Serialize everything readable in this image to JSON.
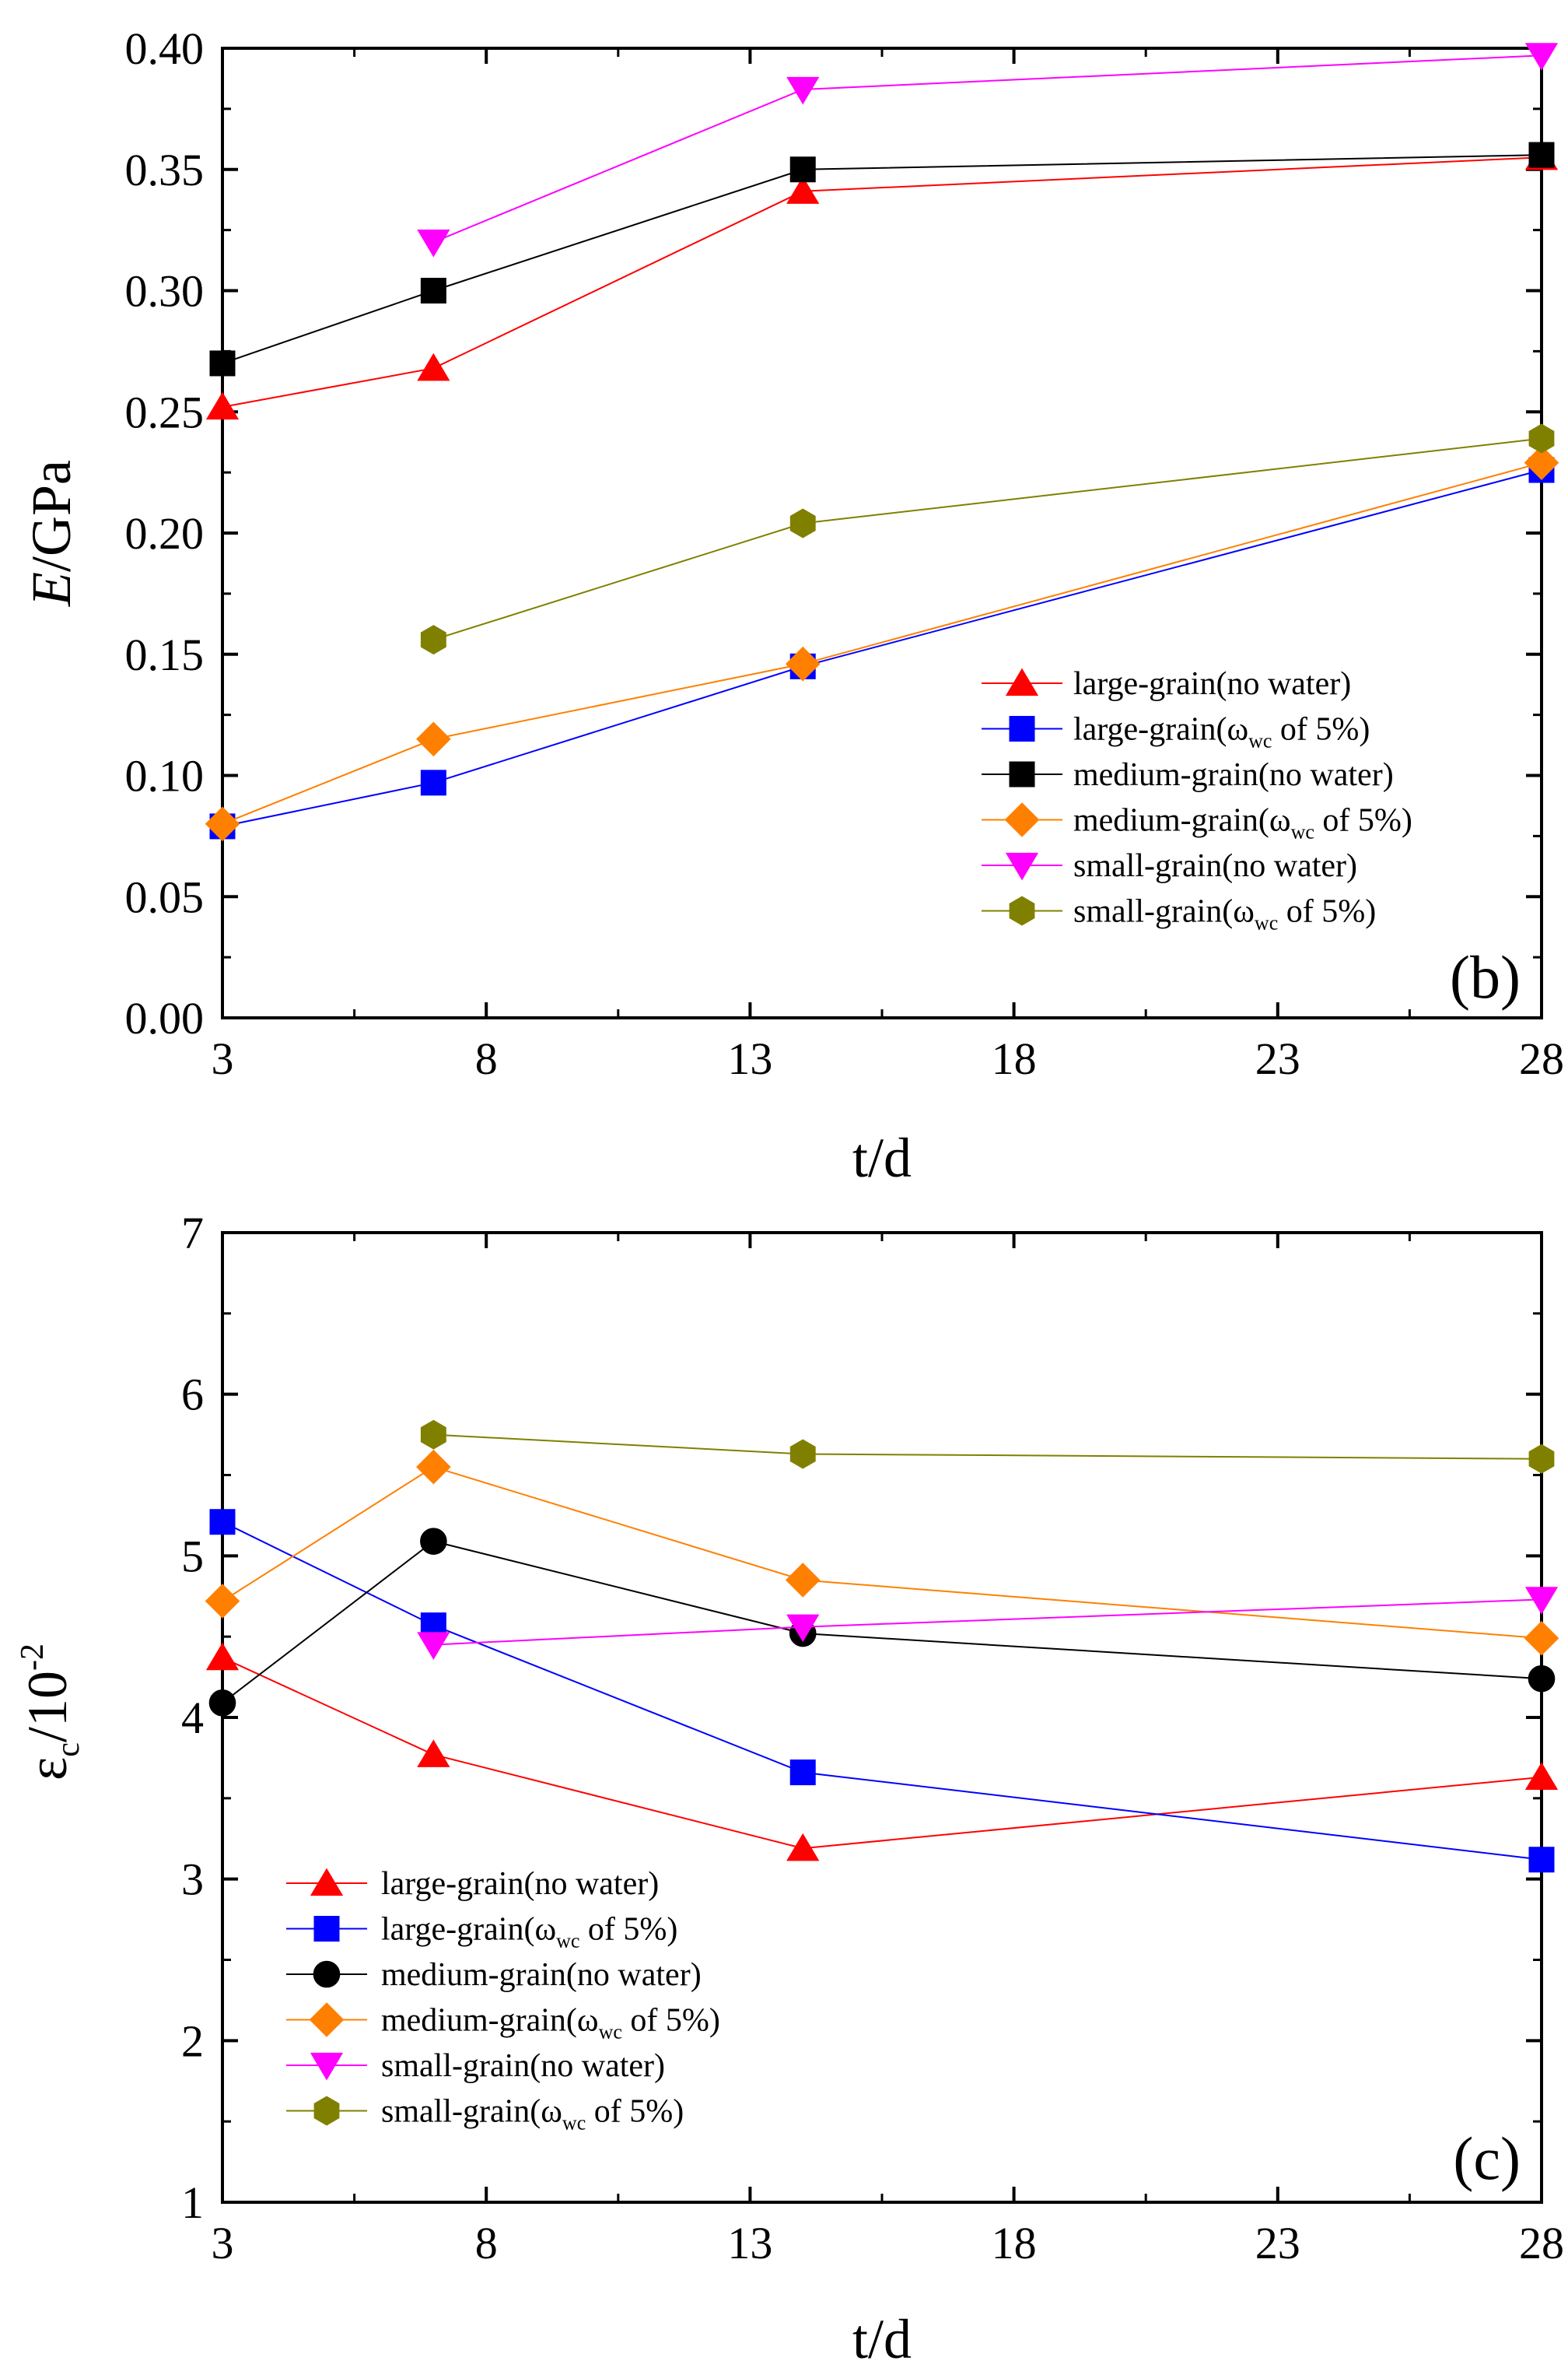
{
  "chart_data": [
    {
      "panel": "(b)",
      "type": "line",
      "xlabel": "t/d",
      "ylabel_italic": "E",
      "ylabel_rest": "/GPa",
      "xlim": [
        3,
        28
      ],
      "ylim": [
        0.0,
        0.4
      ],
      "xticks": [
        "3",
        "8",
        "13",
        "18",
        "23",
        "28"
      ],
      "yticks": [
        "0.00",
        "0.05",
        "0.10",
        "0.15",
        "0.20",
        "0.25",
        "0.30",
        "0.35",
        "0.40"
      ],
      "legend_position": "bottom-right",
      "grid": false,
      "series": [
        {
          "name": "large-grain(no water)",
          "name_prefix": "large-grain(",
          "name_sub": "",
          "name_suffix": "",
          "color": "#ff0000",
          "marker": "triangle-up",
          "x": [
            3,
            7,
            14,
            28
          ],
          "y": [
            0.252,
            0.268,
            0.341,
            0.355
          ]
        },
        {
          "name": "large-grain(ωwc of 5%)",
          "name_prefix": "large-grain(ω",
          "name_sub": "wc",
          "name_suffix": " of 5%)",
          "color": "#0000ff",
          "marker": "square",
          "x": [
            3,
            7,
            14,
            28
          ],
          "y": [
            0.079,
            0.097,
            0.145,
            0.226
          ]
        },
        {
          "name": "medium-grain(no water)",
          "name_prefix": "medium-grain(",
          "name_sub": "",
          "name_suffix": "",
          "color": "#000000",
          "marker": "square",
          "x": [
            3,
            7,
            14,
            28
          ],
          "y": [
            0.27,
            0.3,
            0.35,
            0.356
          ]
        },
        {
          "name": "medium-grain(ωwc of 5%)",
          "name_prefix": "medium-grain(ω",
          "name_sub": "wc",
          "name_suffix": " of 5%)",
          "color": "#ff8000",
          "marker": "diamond",
          "x": [
            3,
            7,
            14,
            28
          ],
          "y": [
            0.08,
            0.115,
            0.146,
            0.229
          ]
        },
        {
          "name": "small-grain(no water)",
          "name_prefix": "small-grain(",
          "name_sub": "",
          "name_suffix": "",
          "color": "#ff00ff",
          "marker": "triangle-down",
          "x": [
            7,
            14,
            28
          ],
          "y": [
            0.32,
            0.383,
            0.397
          ]
        },
        {
          "name": "small-grain(ωwc of 5%)",
          "name_prefix": "small-grain(ω",
          "name_sub": "wc",
          "name_suffix": " of 5%)",
          "color": "#808000",
          "marker": "hexagon",
          "x": [
            7,
            14,
            28
          ],
          "y": [
            0.156,
            0.204,
            0.239
          ]
        }
      ]
    },
    {
      "panel": "(c)",
      "type": "line",
      "xlabel": "t/d",
      "ylabel_symbol": "ε",
      "ylabel_sub": "c",
      "ylabel_mid": "/10",
      "ylabel_sup": "-2",
      "xlim": [
        3,
        28
      ],
      "ylim": [
        1,
        7
      ],
      "xticks": [
        "3",
        "8",
        "13",
        "18",
        "23",
        "28"
      ],
      "yticks": [
        "1",
        "2",
        "3",
        "4",
        "5",
        "6",
        "7"
      ],
      "legend_position": "bottom-left",
      "grid": false,
      "series": [
        {
          "name": "large-grain(no water)",
          "name_prefix": "large-grain(",
          "name_sub": "",
          "name_suffix": "",
          "color": "#ff0000",
          "marker": "triangle-up",
          "x": [
            3,
            7,
            14,
            28
          ],
          "y": [
            4.37,
            3.77,
            3.19,
            3.63
          ]
        },
        {
          "name": "large-grain(ωwc of 5%)",
          "name_prefix": "large-grain(ω",
          "name_sub": "wc",
          "name_suffix": " of 5%)",
          "color": "#0000ff",
          "marker": "square",
          "x": [
            3,
            7,
            14,
            28
          ],
          "y": [
            5.21,
            4.57,
            3.66,
            3.12
          ]
        },
        {
          "name": "medium-grain(no water)",
          "name_prefix": "medium-grain(",
          "name_sub": "",
          "name_suffix": "",
          "color": "#000000",
          "marker": "circle",
          "x": [
            3,
            7,
            14,
            28
          ],
          "y": [
            4.09,
            5.09,
            4.52,
            4.24
          ]
        },
        {
          "name": "medium-grain(ωwc of 5%)",
          "name_prefix": "medium-grain(ω",
          "name_sub": "wc",
          "name_suffix": " of 5%)",
          "color": "#ff8000",
          "marker": "diamond",
          "x": [
            3,
            7,
            14,
            28
          ],
          "y": [
            4.72,
            5.55,
            4.85,
            4.49
          ]
        },
        {
          "name": "small-grain(no water)",
          "name_prefix": "small-grain(",
          "name_sub": "",
          "name_suffix": "",
          "color": "#ff00ff",
          "marker": "triangle-down",
          "x": [
            7,
            14,
            28
          ],
          "y": [
            4.45,
            4.56,
            4.73
          ]
        },
        {
          "name": "small-grain(ωwc of 5%)",
          "name_prefix": "small-grain(ω",
          "name_sub": "wc",
          "name_suffix": " of 5%)",
          "color": "#808000",
          "marker": "hexagon",
          "x": [
            7,
            14,
            28
          ],
          "y": [
            5.75,
            5.63,
            5.6
          ]
        }
      ]
    }
  ]
}
